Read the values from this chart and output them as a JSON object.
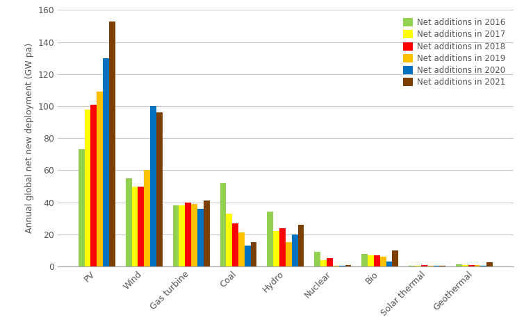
{
  "categories": [
    "PV",
    "Wind",
    "Gas turbine",
    "Coal",
    "Hydro",
    "Nuclear",
    "Bio",
    "Solar thermal",
    "Geothermal"
  ],
  "series": {
    "Net additions in 2016": [
      73,
      55,
      38,
      52,
      34,
      9,
      8,
      0.5,
      1.5
    ],
    "Net additions in 2017": [
      98,
      50,
      38,
      33,
      22,
      4,
      7,
      0.5,
      1.0
    ],
    "Net additions in 2018": [
      101,
      50,
      40,
      27,
      24,
      5,
      7,
      1.0,
      1.0
    ],
    "Net additions in 2019": [
      109,
      60,
      39,
      21,
      15,
      0.5,
      6,
      0.5,
      1.0
    ],
    "Net additions in 2020": [
      130,
      100,
      36,
      13,
      20,
      0.5,
      3,
      0.5,
      0.5
    ],
    "Net additions in 2021": [
      153,
      96,
      41,
      15,
      26,
      1,
      10,
      0.5,
      2.5
    ]
  },
  "colors": {
    "Net additions in 2016": "#92d050",
    "Net additions in 2017": "#ffff00",
    "Net additions in 2018": "#ff0000",
    "Net additions in 2019": "#ffc000",
    "Net additions in 2020": "#0070c0",
    "Net additions in 2021": "#7b3f00"
  },
  "ylabel": "Annual global net new deployment (GW pa)",
  "ylim": [
    0,
    160
  ],
  "yticks": [
    0,
    20,
    40,
    60,
    80,
    100,
    120,
    140,
    160
  ],
  "background_color": "#ffffff",
  "grid_color": "#c8c8c8",
  "bar_width": 0.13,
  "figsize": [
    7.54,
    4.8
  ],
  "dpi": 100
}
